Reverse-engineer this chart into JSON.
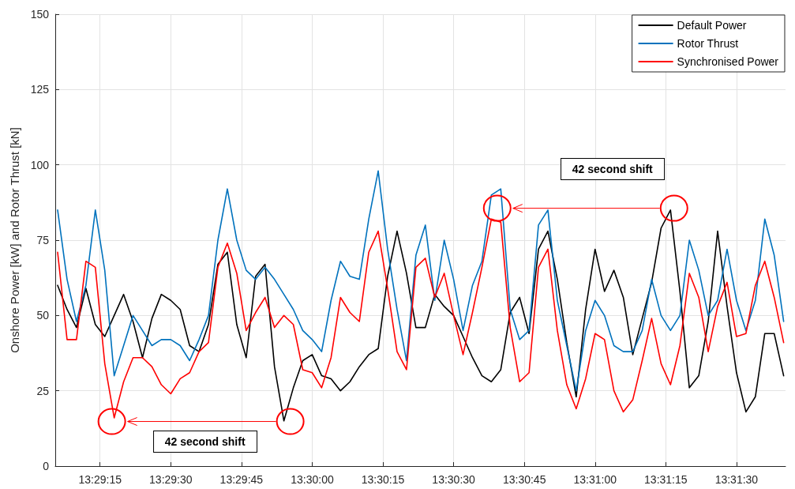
{
  "chart_data": {
    "type": "line",
    "ylabel": "Onshore Power [kW] and Rotor Thrust [kN]",
    "x": [
      13.485,
      13.485556,
      13.486111,
      13.486667,
      13.487222,
      13.487778,
      13.488333,
      13.488889,
      13.489444,
      13.49,
      13.490556,
      13.491111,
      13.491667,
      13.492222,
      13.492778,
      13.493333,
      13.493889,
      13.494444,
      13.495,
      13.495556,
      13.496111,
      13.496667,
      13.497222,
      13.497778,
      13.498333,
      13.498889,
      13.499444,
      13.5,
      13.500556,
      13.501111,
      13.501667,
      13.502222,
      13.502778,
      13.503333,
      13.503889,
      13.504444,
      13.505,
      13.505556,
      13.506111,
      13.506667,
      13.507222,
      13.507778,
      13.508333,
      13.508889,
      13.509444,
      13.51,
      13.510556,
      13.511111,
      13.511667,
      13.512222,
      13.512778,
      13.513333,
      13.513889,
      13.514444,
      13.515,
      13.515556,
      13.516111,
      13.516667,
      13.517222,
      13.517778,
      13.518333,
      13.518889,
      13.519444,
      13.52,
      13.520556,
      13.521111,
      13.521667,
      13.522222,
      13.522778,
      13.523333,
      13.523889,
      13.524444,
      13.525,
      13.525556,
      13.526111,
      13.526667,
      13.527222,
      13.527778
    ],
    "series": [
      {
        "name": "Default Power",
        "color": "#000000",
        "values": [
          60,
          52,
          46,
          59,
          47,
          43,
          50,
          57,
          48,
          36,
          49,
          57,
          55,
          52,
          40,
          38,
          47,
          67,
          71,
          47,
          36,
          63,
          67,
          33,
          15,
          26,
          35,
          37,
          30,
          29,
          25,
          28,
          33,
          37,
          39,
          63,
          78,
          64,
          46,
          46,
          57,
          53,
          50,
          43,
          36,
          30,
          28,
          32,
          51,
          56,
          44,
          72,
          78,
          62,
          41,
          23,
          52,
          72,
          58,
          65,
          56,
          37,
          49,
          61,
          79,
          85,
          58,
          26,
          30,
          48,
          78,
          53,
          31,
          18,
          23,
          44,
          44,
          30
        ]
      },
      {
        "name": "Rotor Thrust",
        "color": "#0072bd",
        "values": [
          85,
          62,
          48,
          60,
          85,
          65,
          30,
          40,
          50,
          45,
          40,
          42,
          42,
          40,
          35,
          42,
          50,
          75,
          92,
          75,
          65,
          62,
          66,
          62,
          57,
          52,
          45,
          42,
          38,
          55,
          68,
          63,
          62,
          82,
          98,
          72,
          52,
          35,
          70,
          80,
          55,
          75,
          62,
          45,
          60,
          68,
          90,
          92,
          52,
          42,
          45,
          80,
          85,
          55,
          40,
          25,
          45,
          55,
          50,
          40,
          38,
          38,
          45,
          62,
          50,
          45,
          50,
          75,
          65,
          50,
          55,
          72,
          55,
          45,
          55,
          82,
          70,
          48
        ]
      },
      {
        "name": "Synchronised Power",
        "color": "#ff0000",
        "values": [
          71,
          42,
          42,
          68,
          66,
          34,
          16,
          28,
          36,
          36,
          33,
          27,
          24,
          29,
          31,
          38,
          41,
          66,
          74,
          64,
          45,
          51,
          56,
          46,
          50,
          47,
          32,
          31,
          26,
          36,
          56,
          51,
          48,
          71,
          78,
          59,
          38,
          32,
          66,
          69,
          56,
          64,
          50,
          37,
          51,
          66,
          82,
          81,
          46,
          28,
          31,
          66,
          72,
          45,
          27,
          19,
          29,
          44,
          42,
          25,
          18,
          22,
          35,
          49,
          34,
          27,
          40,
          64,
          56,
          38,
          53,
          61,
          43,
          44,
          60,
          68,
          56,
          41
        ]
      }
    ],
    "xlim": [
      13.484861,
      13.527889
    ],
    "xticks": [
      {
        "value": 13.4875,
        "label": "13:29:15"
      },
      {
        "value": 13.491667,
        "label": "13:29:30"
      },
      {
        "value": 13.495833,
        "label": "13:29:45"
      },
      {
        "value": 13.5,
        "label": "13:30:00"
      },
      {
        "value": 13.504167,
        "label": "13:30:15"
      },
      {
        "value": 13.508333,
        "label": "13:30:30"
      },
      {
        "value": 13.5125,
        "label": "13:30:45"
      },
      {
        "value": 13.516667,
        "label": "13:31:00"
      },
      {
        "value": 13.520833,
        "label": "13:31:15"
      },
      {
        "value": 13.525,
        "label": "13:31:30"
      }
    ],
    "ylim": [
      0,
      150
    ],
    "yticks": [
      0,
      25,
      50,
      75,
      100,
      125,
      150
    ],
    "annotations": [
      "42 second shift",
      "42 second shift"
    ],
    "grid": true,
    "legend": "top right",
    "line_style": "solid"
  }
}
